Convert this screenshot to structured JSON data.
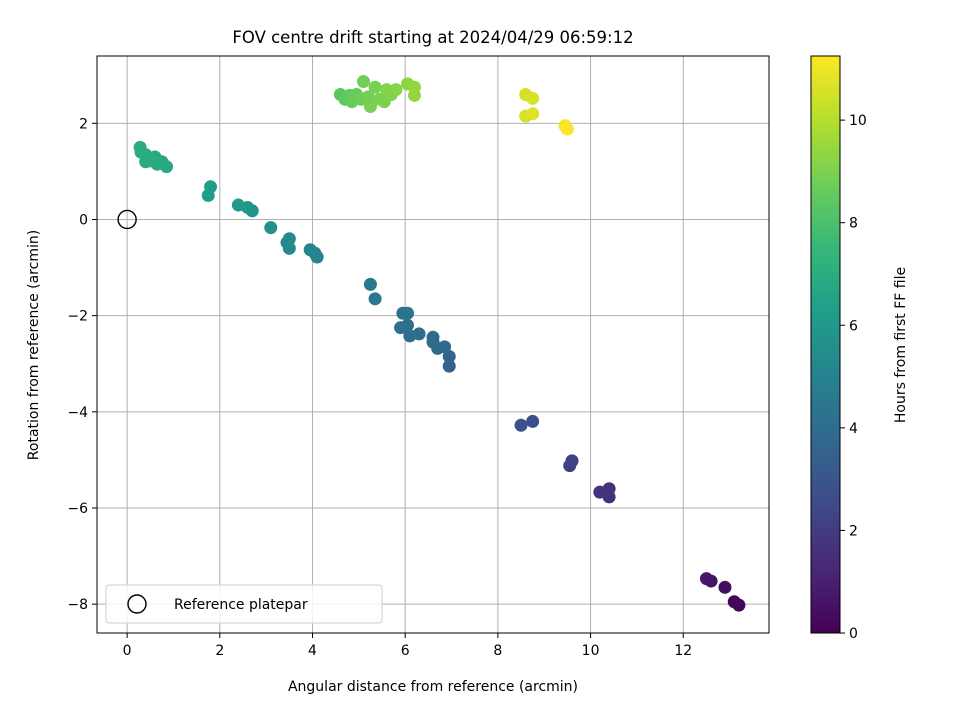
{
  "chart_data": {
    "type": "scatter",
    "title": "FOV centre drift starting at 2024/04/29 06:59:12",
    "xlabel": "Angular distance from reference (arcmin)",
    "ylabel": "Rotation from reference (arcmin)",
    "xlim": [
      -0.65,
      13.85
    ],
    "ylim": [
      -8.6,
      3.4
    ],
    "xticks": [
      0,
      2,
      4,
      6,
      8,
      10,
      12
    ],
    "yticks": [
      -8,
      -6,
      -4,
      -2,
      0,
      2
    ],
    "grid": true,
    "legend": {
      "placement": "lower-left",
      "entries": [
        "Reference platepar"
      ]
    },
    "reference_point": {
      "x": 0,
      "y": 0
    },
    "colorbar": {
      "label": "Hours from first FF file",
      "range": [
        0,
        11.25
      ],
      "ticks": [
        0,
        2,
        4,
        6,
        8,
        10
      ],
      "colormap": "viridis"
    },
    "points": [
      {
        "x": 13.2,
        "y": -8.02,
        "t": 0.1
      },
      {
        "x": 13.1,
        "y": -7.95,
        "t": 0.2
      },
      {
        "x": 12.9,
        "y": -7.65,
        "t": 0.4
      },
      {
        "x": 12.6,
        "y": -7.52,
        "t": 0.6
      },
      {
        "x": 12.5,
        "y": -7.47,
        "t": 0.7
      },
      {
        "x": 10.4,
        "y": -5.77,
        "t": 1.5
      },
      {
        "x": 10.4,
        "y": -5.6,
        "t": 1.6
      },
      {
        "x": 10.2,
        "y": -5.67,
        "t": 1.6
      },
      {
        "x": 9.55,
        "y": -5.12,
        "t": 2.1
      },
      {
        "x": 9.6,
        "y": -5.02,
        "t": 2.2
      },
      {
        "x": 8.75,
        "y": -4.2,
        "t": 2.7
      },
      {
        "x": 8.5,
        "y": -4.28,
        "t": 2.8
      },
      {
        "x": 6.95,
        "y": -3.05,
        "t": 3.5
      },
      {
        "x": 6.95,
        "y": -2.85,
        "t": 3.6
      },
      {
        "x": 6.85,
        "y": -2.65,
        "t": 3.7
      },
      {
        "x": 6.7,
        "y": -2.68,
        "t": 3.8
      },
      {
        "x": 6.6,
        "y": -2.55,
        "t": 3.9
      },
      {
        "x": 6.6,
        "y": -2.45,
        "t": 3.9
      },
      {
        "x": 6.3,
        "y": -2.38,
        "t": 4.0
      },
      {
        "x": 6.1,
        "y": -2.42,
        "t": 4.1
      },
      {
        "x": 6.05,
        "y": -2.2,
        "t": 4.1
      },
      {
        "x": 6.05,
        "y": -1.95,
        "t": 4.2
      },
      {
        "x": 5.9,
        "y": -2.25,
        "t": 4.2
      },
      {
        "x": 5.95,
        "y": -1.95,
        "t": 4.3
      },
      {
        "x": 5.35,
        "y": -1.65,
        "t": 4.5
      },
      {
        "x": 5.25,
        "y": -1.35,
        "t": 4.6
      },
      {
        "x": 4.1,
        "y": -0.78,
        "t": 5.0
      },
      {
        "x": 4.05,
        "y": -0.7,
        "t": 5.1
      },
      {
        "x": 3.95,
        "y": -0.63,
        "t": 5.1
      },
      {
        "x": 3.5,
        "y": -0.6,
        "t": 5.3
      },
      {
        "x": 3.5,
        "y": -0.4,
        "t": 5.4
      },
      {
        "x": 3.45,
        "y": -0.48,
        "t": 5.4
      },
      {
        "x": 3.1,
        "y": -0.17,
        "t": 5.6
      },
      {
        "x": 2.7,
        "y": 0.18,
        "t": 5.8
      },
      {
        "x": 2.6,
        "y": 0.25,
        "t": 5.9
      },
      {
        "x": 2.4,
        "y": 0.3,
        "t": 6.0
      },
      {
        "x": 1.75,
        "y": 0.5,
        "t": 6.3
      },
      {
        "x": 1.8,
        "y": 0.68,
        "t": 6.3
      },
      {
        "x": 0.85,
        "y": 1.1,
        "t": 6.7
      },
      {
        "x": 0.75,
        "y": 1.2,
        "t": 6.7
      },
      {
        "x": 0.65,
        "y": 1.15,
        "t": 6.8
      },
      {
        "x": 0.6,
        "y": 1.3,
        "t": 6.8
      },
      {
        "x": 0.5,
        "y": 1.22,
        "t": 6.9
      },
      {
        "x": 0.4,
        "y": 1.2,
        "t": 6.9
      },
      {
        "x": 0.4,
        "y": 1.35,
        "t": 7.0
      },
      {
        "x": 0.3,
        "y": 1.4,
        "t": 7.0
      },
      {
        "x": 0.28,
        "y": 1.5,
        "t": 7.0
      },
      {
        "x": 4.6,
        "y": 2.6,
        "t": 8.3
      },
      {
        "x": 4.7,
        "y": 2.5,
        "t": 8.4
      },
      {
        "x": 4.8,
        "y": 2.58,
        "t": 8.5
      },
      {
        "x": 4.85,
        "y": 2.45,
        "t": 8.6
      },
      {
        "x": 4.95,
        "y": 2.6,
        "t": 8.6
      },
      {
        "x": 5.05,
        "y": 2.5,
        "t": 8.7
      },
      {
        "x": 5.1,
        "y": 2.87,
        "t": 8.8
      },
      {
        "x": 5.2,
        "y": 2.55,
        "t": 8.8
      },
      {
        "x": 5.25,
        "y": 2.35,
        "t": 8.9
      },
      {
        "x": 5.35,
        "y": 2.75,
        "t": 8.9
      },
      {
        "x": 5.45,
        "y": 2.5,
        "t": 9.0
      },
      {
        "x": 5.55,
        "y": 2.45,
        "t": 9.0
      },
      {
        "x": 5.6,
        "y": 2.7,
        "t": 9.1
      },
      {
        "x": 5.7,
        "y": 2.6,
        "t": 9.1
      },
      {
        "x": 5.8,
        "y": 2.7,
        "t": 9.2
      },
      {
        "x": 6.05,
        "y": 2.82,
        "t": 9.3
      },
      {
        "x": 6.2,
        "y": 2.75,
        "t": 9.4
      },
      {
        "x": 6.2,
        "y": 2.58,
        "t": 9.4
      },
      {
        "x": 8.6,
        "y": 2.6,
        "t": 10.5
      },
      {
        "x": 8.75,
        "y": 2.52,
        "t": 10.6
      },
      {
        "x": 8.6,
        "y": 2.15,
        "t": 10.6
      },
      {
        "x": 8.75,
        "y": 2.2,
        "t": 10.7
      },
      {
        "x": 9.45,
        "y": 1.95,
        "t": 11.1
      },
      {
        "x": 9.5,
        "y": 1.88,
        "t": 11.2
      }
    ]
  }
}
